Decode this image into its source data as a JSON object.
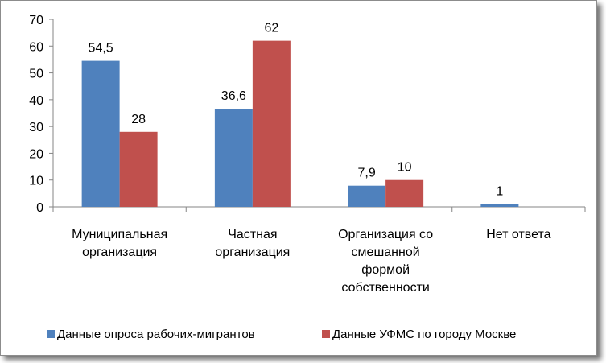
{
  "chart_data": {
    "type": "bar",
    "categories": [
      [
        "Муниципальная",
        "организация"
      ],
      [
        "Частная",
        "организация"
      ],
      [
        "Организация со",
        "смешанной",
        "формой",
        "собственности"
      ],
      [
        "Нет ответа"
      ]
    ],
    "series": [
      {
        "name": "Данные опроса рабочих-мигрантов",
        "color": "#4f81bd",
        "values": [
          54.5,
          36.6,
          7.9,
          1
        ],
        "labels": [
          "54,5",
          "36,6",
          "7,9",
          "1"
        ]
      },
      {
        "name": "Данные УФМС по городу Москве",
        "color": "#c0504d",
        "values": [
          28,
          62,
          10,
          null
        ],
        "labels": [
          "28",
          "62",
          "10",
          ""
        ]
      }
    ],
    "ylim": [
      0,
      70
    ],
    "yticks": [
      0,
      10,
      20,
      30,
      40,
      50,
      60,
      70
    ],
    "grid": false,
    "legend_position": "bottom"
  }
}
